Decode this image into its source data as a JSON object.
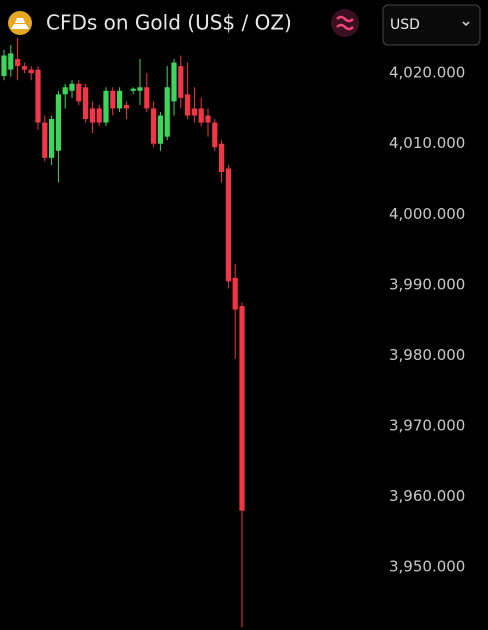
{
  "chart_data": {
    "type": "candlestick",
    "title": "CFDs on Gold (US$ / OZ)",
    "currency_selector": "USD",
    "up_color": "#3fd45a",
    "down_color": "#f23645",
    "ylim": [
      3941.8,
      4024.7
    ],
    "yticks": [
      {
        "value": 4020,
        "label": "4,020.000"
      },
      {
        "value": 4010,
        "label": "4,010.000"
      },
      {
        "value": 4000,
        "label": "4,000.000"
      },
      {
        "value": 3990,
        "label": "3,990.000"
      },
      {
        "value": 3980,
        "label": "3,980.000"
      },
      {
        "value": 3970,
        "label": "3,970.000"
      },
      {
        "value": 3960,
        "label": "3,960.000"
      },
      {
        "value": 3950,
        "label": "3,950.000"
      }
    ],
    "open": [
      4019.6,
      4020.5,
      4022,
      4021,
      4020.5,
      4020.5,
      4013,
      4008,
      4009,
      4017,
      4017.5,
      4018.5,
      4018,
      4015,
      4015,
      4013,
      4017.5,
      4015,
      4015.5,
      4017.5,
      4017.5,
      4018,
      4015,
      4010,
      4011,
      4016,
      4021,
      4017,
      4015,
      4015,
      4014,
      4013,
      4010,
      4006.5,
      3991,
      3987
    ],
    "high": [
      4023.3,
      4024,
      4025,
      4021.5,
      4021,
      4021,
      4014,
      4014,
      4017.5,
      4018.5,
      4019,
      4019,
      4018.5,
      4016,
      4015.5,
      4018,
      4018,
      4018,
      4016,
      4018,
      4022,
      4020,
      4016,
      4014.5,
      4021,
      4022,
      4022.5,
      4021.5,
      4018,
      4016.5,
      4015,
      4013.5,
      4010.5,
      4007,
      3993,
      3987.5
    ],
    "low": [
      4019,
      4019.5,
      4019,
      4020,
      4019,
      4012,
      4007.5,
      4007,
      4004.5,
      4015,
      4016.5,
      4015.5,
      4013,
      4011.5,
      4012.5,
      4012.5,
      4014,
      4014.5,
      4013.5,
      4017,
      4015.5,
      4014.5,
      4009.5,
      4009,
      4010.5,
      4014,
      4015,
      4013.5,
      4013,
      4012.5,
      4011,
      4009,
      4004.5,
      3989.5,
      3979.5,
      3941.5
    ],
    "close": [
      4022.5,
      4022.8,
      4021,
      4020.5,
      4020,
      4013,
      4008,
      4013.5,
      4017,
      4018,
      4018.5,
      4016,
      4013.5,
      4013,
      4013,
      4017.5,
      4015,
      4017.5,
      4015,
      4017.8,
      4018,
      4015,
      4010,
      4014,
      4018,
      4021.5,
      4016.5,
      4014,
      4014,
      4013,
      4013,
      4009.5,
      4006,
      3990.5,
      3986.5,
      3958
    ]
  }
}
